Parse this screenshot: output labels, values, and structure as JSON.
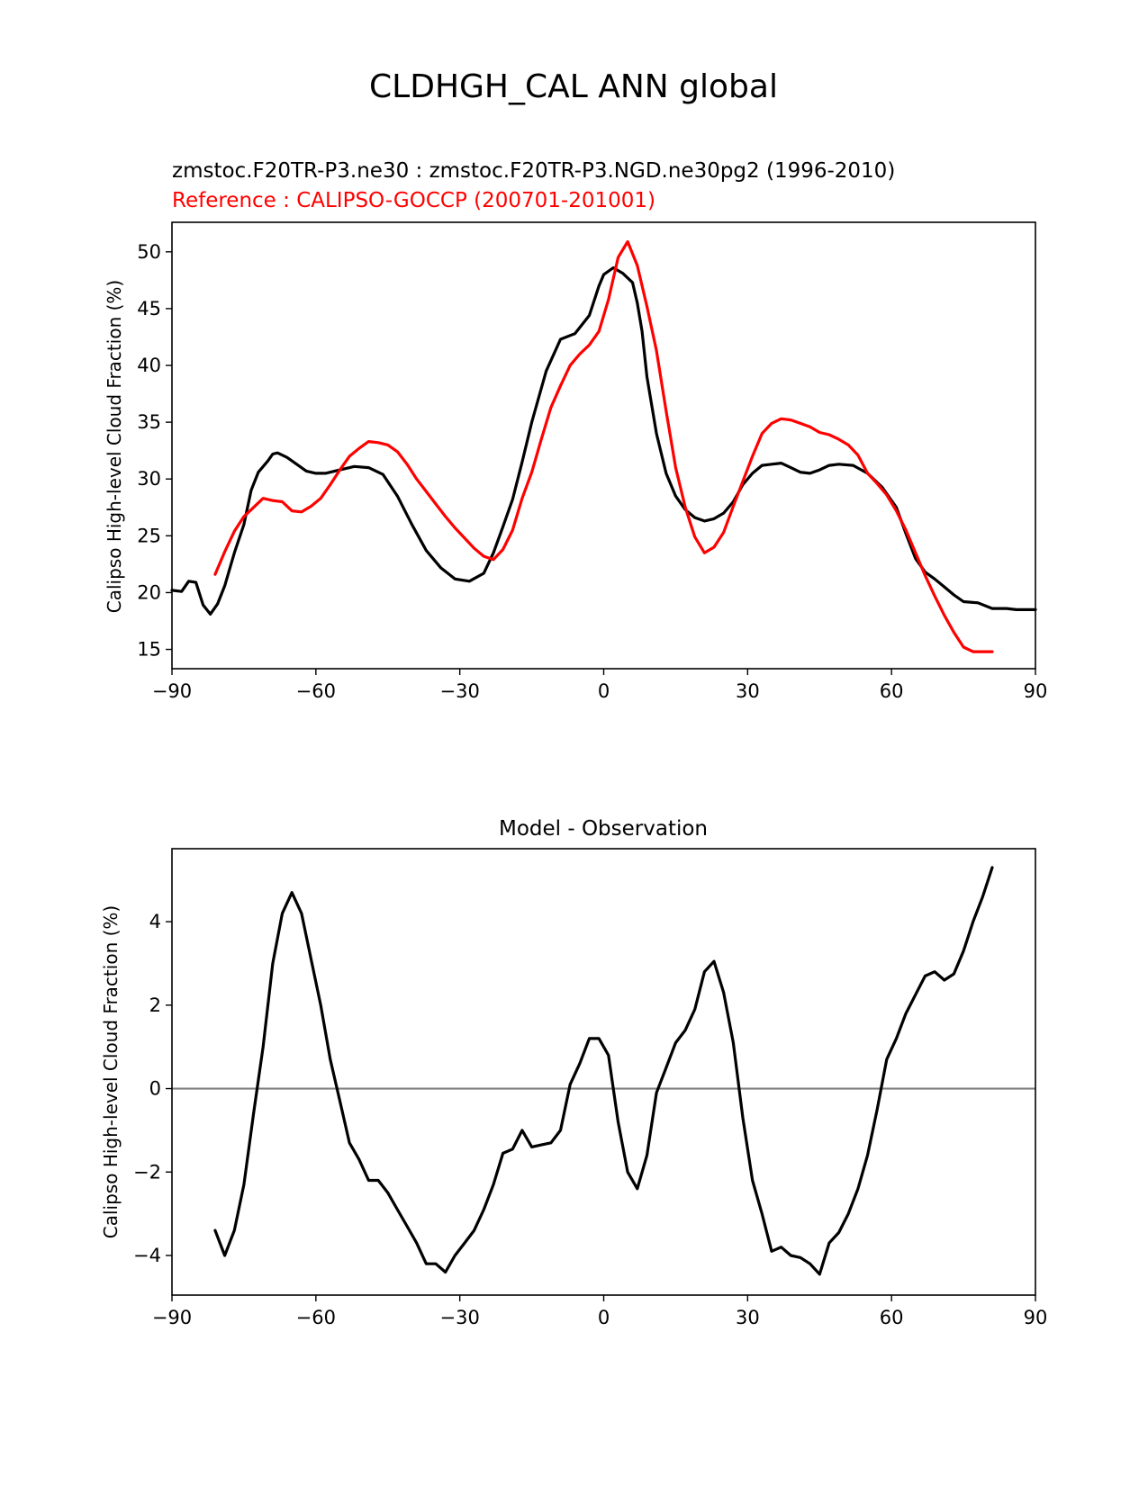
{
  "figure_title": "CLDHGH_CAL ANN global",
  "colors": {
    "model": "#000000",
    "reference": "#ff0000",
    "zero_line": "#808080",
    "axes": "#000000"
  },
  "chart_data": [
    {
      "type": "line",
      "subtitle_model": "zmstoc.F20TR-P3.ne30 : zmstoc.F20TR-P3.NGD.ne30pg2 (1996-2010)",
      "subtitle_reference": "Reference : CALIPSO-GOCCP (200701-201001)",
      "xlabel": "",
      "ylabel": "Calipso High-level Cloud Fraction (%)",
      "xlim": [
        -90,
        90
      ],
      "ylim": [
        13.3,
        52.6
      ],
      "xticks": [
        -90,
        -60,
        -30,
        0,
        30,
        60,
        90
      ],
      "xtick_labels": [
        "−90",
        "−60",
        "−30",
        "0",
        "30",
        "60",
        "90"
      ],
      "yticks": [
        15,
        20,
        25,
        30,
        35,
        40,
        45,
        50
      ],
      "ytick_labels": [
        "15",
        "20",
        "25",
        "30",
        "35",
        "40",
        "45",
        "50"
      ],
      "series": [
        {
          "name": "Model",
          "color": "#000000",
          "x": [
            -90,
            -88,
            -86.5,
            -85,
            -83.5,
            -82,
            -80.5,
            -79,
            -77,
            -75,
            -73.5,
            -72,
            -70,
            -69,
            -68,
            -67,
            -66,
            -64,
            -62,
            -60,
            -58,
            -55,
            -52,
            -49,
            -46,
            -43,
            -40,
            -37,
            -34,
            -31,
            -28,
            -25,
            -23,
            -21,
            -19,
            -17,
            -15,
            -12,
            -9,
            -6,
            -3,
            -1,
            0,
            2,
            4,
            6,
            7,
            8,
            9,
            11,
            13,
            15,
            17,
            19,
            21,
            23,
            25,
            27,
            29,
            31,
            33,
            35,
            37,
            39,
            41,
            43,
            45,
            47,
            49,
            52,
            55,
            58,
            61,
            63,
            65,
            67,
            69,
            71,
            73,
            75,
            78,
            81,
            84,
            86,
            88,
            90
          ],
          "y": [
            20.2,
            20.1,
            21.0,
            20.9,
            18.9,
            18.1,
            19.0,
            20.6,
            23.5,
            26.0,
            29.0,
            30.6,
            31.6,
            32.2,
            32.3,
            32.1,
            31.9,
            31.3,
            30.7,
            30.5,
            30.5,
            30.8,
            31.1,
            31.0,
            30.4,
            28.5,
            26.0,
            23.7,
            22.2,
            21.2,
            21.0,
            21.7,
            23.5,
            25.8,
            28.2,
            31.5,
            35.0,
            39.5,
            42.3,
            42.8,
            44.4,
            47.0,
            48.0,
            48.6,
            48.1,
            47.3,
            45.5,
            43.0,
            39.0,
            34.0,
            30.5,
            28.5,
            27.3,
            26.6,
            26.3,
            26.5,
            27.0,
            28.0,
            29.5,
            30.5,
            31.2,
            31.3,
            31.4,
            31.0,
            30.6,
            30.5,
            30.8,
            31.2,
            31.3,
            31.2,
            30.5,
            29.3,
            27.5,
            25.2,
            23.0,
            21.8,
            21.2,
            20.5,
            19.8,
            19.2,
            19.1,
            18.6,
            18.6,
            18.5,
            18.5,
            18.5
          ],
          "values_note": "model curve"
        },
        {
          "name": "Reference",
          "color": "#ff0000",
          "x": [
            -81,
            -79,
            -77,
            -75,
            -73,
            -71,
            -69,
            -67,
            -65,
            -63,
            -61,
            -59,
            -57,
            -55,
            -53,
            -51,
            -49,
            -47,
            -45,
            -43,
            -41,
            -39,
            -37,
            -35,
            -33,
            -31,
            -29,
            -27,
            -25,
            -23,
            -21,
            -19,
            -17,
            -15,
            -13,
            -11,
            -9,
            -7,
            -5,
            -3,
            -1,
            1,
            3,
            5,
            7,
            9,
            11,
            13,
            15,
            17,
            19,
            21,
            23,
            25,
            27,
            29,
            31,
            33,
            35,
            37,
            39,
            41,
            43,
            45,
            47,
            49,
            51,
            53,
            55,
            57,
            59,
            61,
            63,
            65,
            67,
            69,
            71,
            73,
            75,
            77,
            79,
            81
          ],
          "y": [
            21.6,
            23.6,
            25.4,
            26.7,
            27.5,
            28.3,
            28.1,
            28.0,
            27.2,
            27.1,
            27.6,
            28.3,
            29.5,
            30.8,
            32.0,
            32.7,
            33.3,
            33.2,
            33.0,
            32.4,
            31.3,
            30.0,
            28.9,
            27.8,
            26.7,
            25.7,
            24.8,
            23.9,
            23.2,
            22.9,
            23.8,
            25.5,
            28.3,
            30.6,
            33.5,
            36.3,
            38.2,
            40.0,
            41.0,
            41.8,
            43.0,
            45.8,
            49.5,
            50.9,
            48.8,
            45.2,
            41.3,
            36.0,
            31.0,
            27.5,
            24.9,
            23.5,
            24.0,
            25.3,
            27.6,
            29.8,
            32.0,
            34.0,
            34.9,
            35.3,
            35.2,
            34.9,
            34.6,
            34.1,
            33.9,
            33.5,
            33.0,
            32.1,
            30.5,
            29.6,
            28.6,
            27.2,
            25.5,
            23.5,
            21.5,
            19.7,
            18.0,
            16.5,
            15.2,
            14.8,
            14.8,
            14.8
          ],
          "values_note": "reference curve"
        }
      ]
    },
    {
      "type": "line",
      "title": "Model - Observation",
      "xlabel": "",
      "ylabel": "Calipso High-level Cloud Fraction (%)",
      "xlim": [
        -90,
        90
      ],
      "ylim": [
        -4.95,
        5.75
      ],
      "xticks": [
        -90,
        -60,
        -30,
        0,
        30,
        60,
        90
      ],
      "xtick_labels": [
        "−90",
        "−60",
        "−30",
        "0",
        "30",
        "60",
        "90"
      ],
      "yticks": [
        -4,
        -2,
        0,
        2,
        4
      ],
      "ytick_labels": [
        "−4",
        "−2",
        "0",
        "2",
        "4"
      ],
      "zero_line": 0,
      "series": [
        {
          "name": "Difference",
          "color": "#000000",
          "x": [
            -81,
            -79,
            -77,
            -75,
            -73,
            -71,
            -69,
            -67,
            -65,
            -63,
            -61,
            -59,
            -57,
            -55,
            -53,
            -51,
            -49,
            -47,
            -45,
            -43,
            -41,
            -39,
            -37,
            -35,
            -33,
            -31,
            -29,
            -27,
            -25,
            -23,
            -21,
            -19,
            -17,
            -15,
            -13,
            -11,
            -9,
            -7,
            -5,
            -3,
            -1,
            1,
            3,
            5,
            7,
            9,
            11,
            13,
            15,
            17,
            19,
            21,
            23,
            25,
            27,
            29,
            31,
            33,
            35,
            37,
            39,
            41,
            43,
            45,
            47,
            49,
            51,
            53,
            55,
            57,
            59,
            61,
            63,
            65,
            67,
            69,
            71,
            73,
            75,
            77,
            79,
            81
          ],
          "y": [
            -3.4,
            -4.0,
            -3.4,
            -2.3,
            -0.6,
            1.0,
            3.0,
            4.2,
            4.7,
            4.2,
            3.1,
            2.0,
            0.7,
            -0.3,
            -1.3,
            -1.7,
            -2.2,
            -2.2,
            -2.5,
            -2.9,
            -3.3,
            -3.7,
            -4.2,
            -4.2,
            -4.4,
            -4.0,
            -3.7,
            -3.4,
            -2.9,
            -2.3,
            -1.55,
            -1.45,
            -1.0,
            -1.4,
            -1.35,
            -1.3,
            -1.0,
            0.1,
            0.6,
            1.2,
            1.2,
            0.8,
            -0.8,
            -2.0,
            -2.4,
            -1.6,
            -0.1,
            0.5,
            1.1,
            1.4,
            1.9,
            2.8,
            3.05,
            2.3,
            1.1,
            -0.7,
            -2.2,
            -3.0,
            -3.9,
            -3.8,
            -4.0,
            -4.05,
            -4.2,
            -4.45,
            -3.7,
            -3.45,
            -3.0,
            -2.4,
            -1.6,
            -0.5,
            0.7,
            1.2,
            1.8,
            2.25,
            2.7,
            2.8,
            2.6,
            2.75,
            3.3,
            4.0,
            4.6,
            5.3
          ],
          "values_note": "model minus observation"
        }
      ]
    }
  ]
}
